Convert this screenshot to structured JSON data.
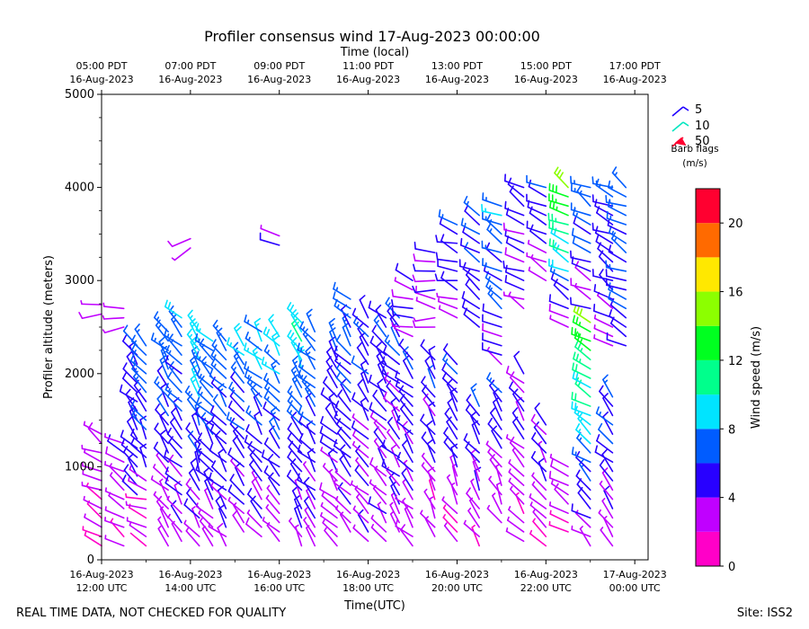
{
  "chart_data": {
    "type": "wind-barb-profile",
    "title": "Profiler consensus wind 17-Aug-2023 00:00:00",
    "top_axis_label": "Time (local)",
    "xlabel": "Time(UTC)",
    "ylabel": "Profiler altitude (meters)",
    "ylim": [
      0,
      5000
    ],
    "xlim_hours_utc": [
      12.0,
      24.3
    ],
    "y_ticks": [
      0,
      1000,
      2000,
      3000,
      4000,
      5000
    ],
    "y_tick_labels": [
      "0",
      "1000",
      "2000",
      "3000",
      "4000",
      "5000"
    ],
    "bottom_ticks": [
      {
        "hour": 12,
        "date": "16-Aug-2023",
        "time": "12:00 UTC"
      },
      {
        "hour": 14,
        "date": "16-Aug-2023",
        "time": "14:00 UTC"
      },
      {
        "hour": 16,
        "date": "16-Aug-2023",
        "time": "16:00 UTC"
      },
      {
        "hour": 18,
        "date": "16-Aug-2023",
        "time": "18:00 UTC"
      },
      {
        "hour": 20,
        "date": "16-Aug-2023",
        "time": "20:00 UTC"
      },
      {
        "hour": 22,
        "date": "16-Aug-2023",
        "time": "22:00 UTC"
      },
      {
        "hour": 24,
        "date": "17-Aug-2023",
        "time": "00:00 UTC"
      }
    ],
    "top_ticks": [
      {
        "hour": 12,
        "time": "05:00 PDT",
        "date": "16-Aug-2023"
      },
      {
        "hour": 14,
        "time": "07:00 PDT",
        "date": "16-Aug-2023"
      },
      {
        "hour": 16,
        "time": "09:00 PDT",
        "date": "16-Aug-2023"
      },
      {
        "hour": 18,
        "time": "11:00 PDT",
        "date": "16-Aug-2023"
      },
      {
        "hour": 20,
        "time": "13:00 PDT",
        "date": "16-Aug-2023"
      },
      {
        "hour": 22,
        "time": "15:00 PDT",
        "date": "16-Aug-2023"
      },
      {
        "hour": 24,
        "time": "17:00 PDT",
        "date": "16-Aug-2023"
      }
    ],
    "barb_legend": {
      "title": "Barb flags",
      "units": "(m/s)",
      "entries": [
        {
          "label": "5",
          "color": "#2000ff"
        },
        {
          "label": "10",
          "color": "#00e6c0"
        },
        {
          "label": "50",
          "color": "#ff0030"
        }
      ]
    },
    "colorbar": {
      "label": "Wind speed (m/s)",
      "range": [
        0,
        22
      ],
      "tick_values": [
        0,
        4,
        8,
        12,
        16,
        20
      ],
      "tick_labels": [
        "0",
        "4",
        "8",
        "12",
        "16",
        "20"
      ],
      "bins": [
        {
          "from": 0,
          "to": 2,
          "color": "#ff00c8"
        },
        {
          "from": 2,
          "to": 4,
          "color": "#c000ff"
        },
        {
          "from": 4,
          "to": 6,
          "color": "#2800ff"
        },
        {
          "from": 6,
          "to": 8,
          "color": "#005cff"
        },
        {
          "from": 8,
          "to": 10,
          "color": "#00e4ff"
        },
        {
          "from": 10,
          "to": 12,
          "color": "#00ff8c"
        },
        {
          "from": 12,
          "to": 14,
          "color": "#00ff20"
        },
        {
          "from": 14,
          "to": 16,
          "color": "#8cff00"
        },
        {
          "from": 16,
          "to": 18,
          "color": "#ffe800"
        },
        {
          "from": 18,
          "to": 20,
          "color": "#ff6a00"
        },
        {
          "from": 20,
          "to": 22,
          "color": "#ff0030"
        }
      ]
    },
    "barb_columns": [
      {
        "hour": 12.0,
        "bottom": 150,
        "top": 1400,
        "speed_low": 2,
        "speed_high": 3,
        "direction_deg": 300
      },
      {
        "hour": 12.0,
        "bottom": 2640,
        "top": 2760,
        "speed_low": 3,
        "speed_high": 3,
        "direction_deg": 270
      },
      {
        "hour": 12.5,
        "bottom": 150,
        "top": 1300,
        "speed_low": 2,
        "speed_high": 4,
        "direction_deg": 300
      },
      {
        "hour": 12.5,
        "bottom": 2500,
        "top": 2760,
        "speed_low": 3,
        "speed_high": 3,
        "direction_deg": 270
      },
      {
        "hour": 12.8,
        "bottom": 700,
        "top": 2300,
        "speed_low": 4,
        "speed_high": 6,
        "direction_deg": 320
      },
      {
        "hour": 13.0,
        "bottom": 150,
        "top": 900,
        "speed_low": 2,
        "speed_high": 3,
        "direction_deg": 290
      },
      {
        "hour": 13.0,
        "bottom": 1000,
        "top": 2300,
        "speed_low": 5,
        "speed_high": 8,
        "direction_deg": 330
      },
      {
        "hour": 13.5,
        "bottom": 150,
        "top": 2500,
        "speed_low": 3,
        "speed_high": 7,
        "direction_deg": 320
      },
      {
        "hour": 13.8,
        "bottom": 200,
        "top": 2600,
        "speed_low": 3,
        "speed_high": 8,
        "direction_deg": 320
      },
      {
        "hour": 14.2,
        "bottom": 150,
        "top": 2450,
        "speed_low": 3,
        "speed_high": 9,
        "direction_deg": 330
      },
      {
        "hour": 14.5,
        "bottom": 150,
        "top": 2400,
        "speed_low": 3,
        "speed_high": 8,
        "direction_deg": 320
      },
      {
        "hour": 14.0,
        "bottom": 3350,
        "top": 3480,
        "speed_low": 4,
        "speed_high": 4,
        "direction_deg": 240
      },
      {
        "hour": 14.8,
        "bottom": 150,
        "top": 2350,
        "speed_low": 3,
        "speed_high": 8,
        "direction_deg": 320
      },
      {
        "hour": 15.2,
        "bottom": 300,
        "top": 2300,
        "speed_low": 3,
        "speed_high": 8,
        "direction_deg": 320
      },
      {
        "hour": 15.6,
        "bottom": 250,
        "top": 2500,
        "speed_low": 3,
        "speed_high": 9,
        "direction_deg": 320
      },
      {
        "hour": 16.0,
        "bottom": 200,
        "top": 2450,
        "speed_low": 3,
        "speed_high": 9,
        "direction_deg": 320
      },
      {
        "hour": 16.5,
        "bottom": 150,
        "top": 2600,
        "speed_low": 3,
        "speed_high": 10,
        "direction_deg": 330
      },
      {
        "hour": 16.0,
        "bottom": 3380,
        "top": 3480,
        "speed_low": 4,
        "speed_high": 4,
        "direction_deg": 280
      },
      {
        "hour": 16.8,
        "bottom": 150,
        "top": 2500,
        "speed_low": 3,
        "speed_high": 8,
        "direction_deg": 320
      },
      {
        "hour": 17.3,
        "bottom": 150,
        "top": 2400,
        "speed_low": 3,
        "speed_high": 6,
        "direction_deg": 320
      },
      {
        "hour": 17.6,
        "bottom": 300,
        "top": 2800,
        "speed_low": 3,
        "speed_high": 7,
        "direction_deg": 320
      },
      {
        "hour": 18.0,
        "bottom": 200,
        "top": 2600,
        "speed_low": 3,
        "speed_high": 6,
        "direction_deg": 320
      },
      {
        "hour": 18.4,
        "bottom": 200,
        "top": 2600,
        "speed_low": 3,
        "speed_high": 6,
        "direction_deg": 320
      },
      {
        "hour": 18.7,
        "bottom": 300,
        "top": 2600,
        "speed_low": 3,
        "speed_high": 6,
        "direction_deg": 320
      },
      {
        "hour": 19.0,
        "bottom": 150,
        "top": 2200,
        "speed_low": 3,
        "speed_high": 6,
        "direction_deg": 320
      },
      {
        "hour": 19.0,
        "bottom": 2400,
        "top": 3050,
        "speed_low": 3,
        "speed_high": 5,
        "direction_deg": 290
      },
      {
        "hour": 19.5,
        "bottom": 250,
        "top": 2200,
        "speed_low": 2,
        "speed_high": 6,
        "direction_deg": 330
      },
      {
        "hour": 19.5,
        "bottom": 2500,
        "top": 3300,
        "speed_low": 3,
        "speed_high": 5,
        "direction_deg": 280
      },
      {
        "hour": 20.0,
        "bottom": 200,
        "top": 2100,
        "speed_low": 2,
        "speed_high": 6,
        "direction_deg": 330
      },
      {
        "hour": 20.0,
        "bottom": 2600,
        "top": 3650,
        "speed_low": 3,
        "speed_high": 6,
        "direction_deg": 290
      },
      {
        "hour": 20.5,
        "bottom": 150,
        "top": 1700,
        "speed_low": 2,
        "speed_high": 6,
        "direction_deg": 330
      },
      {
        "hour": 20.5,
        "bottom": 2500,
        "top": 3700,
        "speed_low": 4,
        "speed_high": 7,
        "direction_deg": 300
      },
      {
        "hour": 21.0,
        "bottom": 400,
        "top": 1800,
        "speed_low": 3,
        "speed_high": 6,
        "direction_deg": 330
      },
      {
        "hour": 21.0,
        "bottom": 2100,
        "top": 3800,
        "speed_low": 4,
        "speed_high": 8,
        "direction_deg": 300
      },
      {
        "hour": 21.5,
        "bottom": 200,
        "top": 2000,
        "speed_low": 2,
        "speed_high": 5,
        "direction_deg": 320
      },
      {
        "hour": 21.5,
        "bottom": 2700,
        "top": 4000,
        "speed_low": 3,
        "speed_high": 6,
        "direction_deg": 300
      },
      {
        "hour": 22.0,
        "bottom": 150,
        "top": 1500,
        "speed_low": 2,
        "speed_high": 5,
        "direction_deg": 320
      },
      {
        "hour": 22.0,
        "bottom": 3000,
        "top": 4050,
        "speed_low": 3,
        "speed_high": 6,
        "direction_deg": 300
      },
      {
        "hour": 22.5,
        "bottom": 300,
        "top": 1000,
        "speed_low": 2,
        "speed_high": 4,
        "direction_deg": 300
      },
      {
        "hour": 22.5,
        "bottom": 2500,
        "top": 4000,
        "speed_low": 3,
        "speed_high": 15,
        "direction_deg": 300
      },
      {
        "hour": 23.0,
        "bottom": 150,
        "top": 2600,
        "speed_low": 3,
        "speed_high": 14,
        "direction_deg": 310
      },
      {
        "hour": 23.0,
        "bottom": 2700,
        "top": 4050,
        "speed_low": 4,
        "speed_high": 7,
        "direction_deg": 300
      },
      {
        "hour": 23.5,
        "bottom": 150,
        "top": 1800,
        "speed_low": 2,
        "speed_high": 7,
        "direction_deg": 320
      },
      {
        "hour": 23.5,
        "bottom": 2300,
        "top": 4050,
        "speed_low": 3,
        "speed_high": 7,
        "direction_deg": 300
      },
      {
        "hour": 23.8,
        "bottom": 2300,
        "top": 4000,
        "speed_low": 5,
        "speed_high": 7,
        "direction_deg": 300
      }
    ],
    "footer_left": "REAL TIME DATA, NOT CHECKED FOR QUALITY",
    "footer_right": "Site: ISS2"
  }
}
